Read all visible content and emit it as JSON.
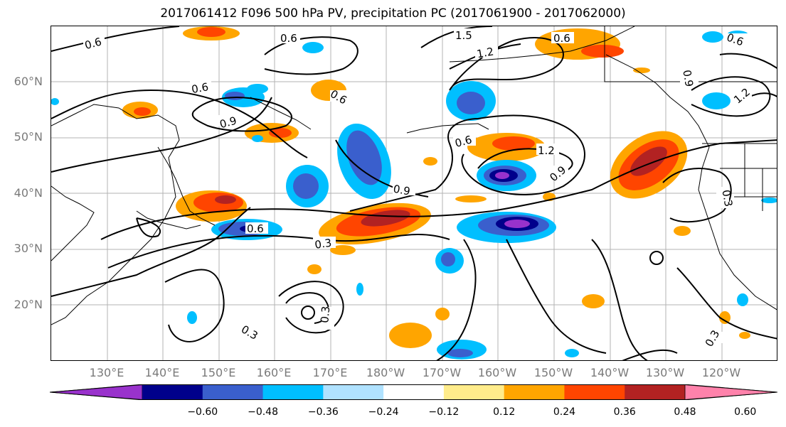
{
  "title": "2017061412 F096 500 hPa PV, precipitation PC (2017061900 - 2017062000)",
  "lat_labels": [
    "60°N",
    "50°N",
    "40°N",
    "30°N",
    "20°N"
  ],
  "lon_labels": [
    "130°E",
    "140°E",
    "150°E",
    "160°E",
    "170°E",
    "180°W",
    "170°W",
    "160°W",
    "150°W",
    "140°W",
    "130°W",
    "120°W"
  ],
  "contour_labels": [
    "0.6",
    "0.6",
    "0.6",
    "0.6",
    "0.6",
    "0.6",
    "0.6",
    "0.9",
    "0.9",
    "0.9",
    "0.9",
    "1.2",
    "1.2",
    "1.2",
    "1.5",
    "0.3",
    "0.3",
    "0.3",
    "0.3",
    "0.3",
    "0.6"
  ],
  "colorbar": {
    "ticks": [
      "−0.60",
      "−0.48",
      "−0.36",
      "−0.24",
      "−0.12",
      "0.12",
      "0.24",
      "0.36",
      "0.48",
      "0.60"
    ],
    "colors": [
      "#9932cc",
      "#00008b",
      "#3a5fcd",
      "#00bfff",
      "#b0e2ff",
      "#ffffff",
      "#ffec8b",
      "#ffa500",
      "#ff4500",
      "#b22222",
      "#ff82ab"
    ]
  },
  "colors": {
    "neg_low": "#9932cc",
    "neg_darkblue": "#00008b",
    "neg_blue": "#3a5fcd",
    "neg_cyan": "#00bfff",
    "neg_light": "#b0e2ff",
    "pos_yellow": "#ffec8b",
    "pos_orange": "#ffa500",
    "pos_red": "#ff4500",
    "pos_darkred": "#b22222"
  }
}
